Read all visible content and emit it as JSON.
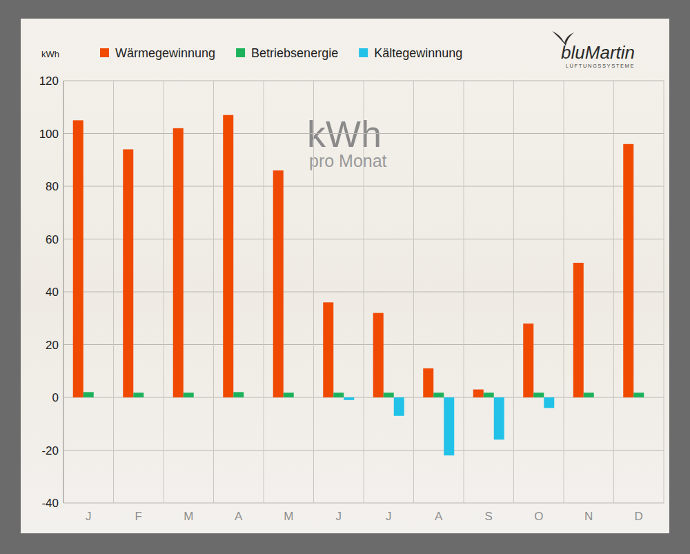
{
  "chart_data": {
    "type": "bar",
    "title": "kWh",
    "subtitle": "pro Monat",
    "y_label": "kWh",
    "annotations": [
      "bluMartin",
      "LÜFTUNGSSYSTEME"
    ],
    "categories": [
      "J",
      "F",
      "M",
      "A",
      "M",
      "J",
      "J",
      "A",
      "S",
      "O",
      "N",
      "D"
    ],
    "series": [
      {
        "name": "Wärmegewinnung",
        "color": "#f04a00",
        "values": [
          105,
          94,
          102,
          107,
          86,
          36,
          32,
          11,
          3,
          28,
          51,
          96
        ]
      },
      {
        "name": "Betriebsenergie",
        "color": "#1cb25c",
        "values": [
          2,
          1.8,
          1.8,
          2,
          1.8,
          1.8,
          1.8,
          1.8,
          1.8,
          1.8,
          1.8,
          1.8
        ]
      },
      {
        "name": "Kältegewinnung",
        "color": "#22c2e8",
        "values": [
          0,
          0,
          0,
          0,
          0,
          -1,
          -7,
          -22,
          -16,
          -4,
          0,
          0
        ]
      }
    ],
    "ylim": [
      -40,
      120
    ],
    "yticks": [
      -40,
      -20,
      0,
      20,
      40,
      60,
      80,
      100,
      120
    ],
    "grid": true,
    "legend": "top"
  }
}
